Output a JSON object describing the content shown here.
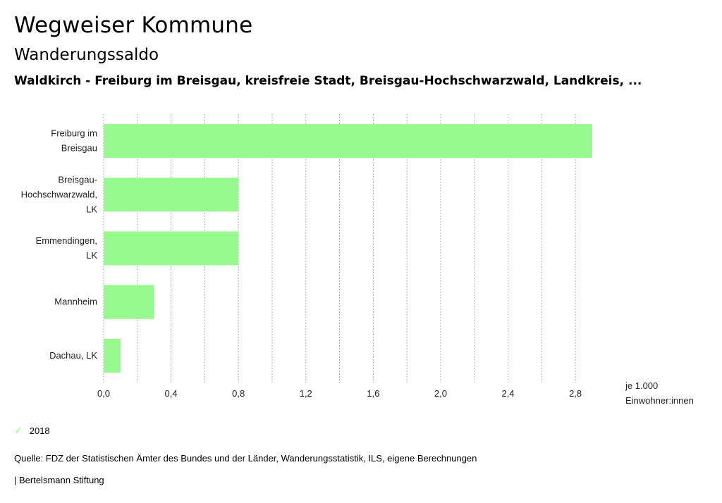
{
  "header": {
    "title": "Wegweiser Kommune",
    "subtitle": "Wanderungssaldo",
    "region": "Waldkirch - Freiburg im Breisgau, kreisfreie Stadt, Breisgau-Hochschwarzwald, Landkreis, ..."
  },
  "chart_data": {
    "type": "bar",
    "orientation": "horizontal",
    "categories": [
      [
        "Freiburg im",
        "Breisgau"
      ],
      [
        "Breisgau-",
        "Hochschwarzwald,",
        "LK"
      ],
      [
        "Emmendingen,",
        "LK"
      ],
      [
        "Mannheim"
      ],
      [
        "Dachau, LK"
      ]
    ],
    "series": [
      {
        "name": "2018",
        "values": [
          2.9,
          0.8,
          0.8,
          0.3,
          0.1
        ],
        "color": "#98f98f"
      }
    ],
    "xlim": [
      0,
      2.9
    ],
    "xticks": [
      0,
      0.4,
      0.8,
      1.2,
      1.6,
      2.0,
      2.4,
      2.8
    ],
    "xtick_labels": [
      "0,0",
      "0,4",
      "0,8",
      "1,2",
      "1,6",
      "2,0",
      "2,4",
      "2,8"
    ],
    "minor_grid_step": 0.2,
    "unit_label": [
      "je 1.000",
      "Einwohner:innen"
    ],
    "grid": true
  },
  "legend": {
    "label": "2018",
    "icon": "check-icon",
    "color": "#98f98f"
  },
  "footer": {
    "source": "Quelle: FDZ der Statistischen Ämter des Bundes und der Länder, Wanderungsstatistik, ILS, eigene Berechnungen",
    "credit": "| Bertelsmann Stiftung"
  }
}
